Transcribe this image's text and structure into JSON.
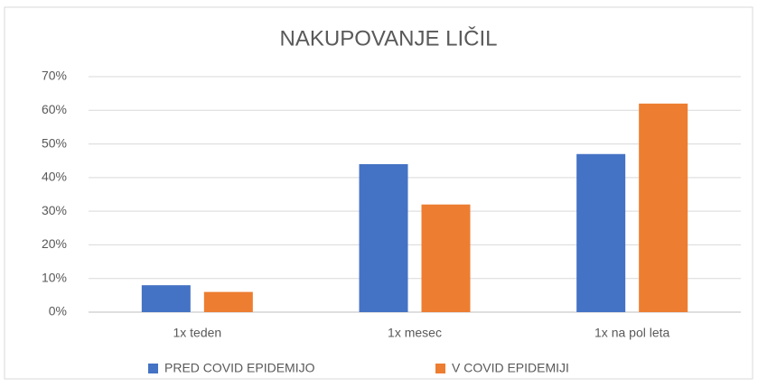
{
  "chart_data": {
    "type": "bar",
    "title": "NAKUPOVANJE LIČIL",
    "categories": [
      "1x teden",
      "1x mesec",
      "1x na pol leta"
    ],
    "series": [
      {
        "name": "PRED COVID EPIDEMIJO",
        "color": "#4472c4",
        "values": [
          8,
          44,
          47
        ]
      },
      {
        "name": "V COVID EPIDEMIJI",
        "color": "#ed7d31",
        "values": [
          6,
          32,
          62
        ]
      }
    ],
    "ylim": [
      0,
      70
    ],
    "yticks": [
      {
        "value": 0,
        "label": "0%"
      },
      {
        "value": 10,
        "label": "10%"
      },
      {
        "value": 20,
        "label": "20%"
      },
      {
        "value": 30,
        "label": "30%"
      },
      {
        "value": 40,
        "label": "40%"
      },
      {
        "value": 50,
        "label": "50%"
      },
      {
        "value": 60,
        "label": "60%"
      },
      {
        "value": 70,
        "label": "70%"
      }
    ],
    "grid": true,
    "legend": "bottom"
  }
}
